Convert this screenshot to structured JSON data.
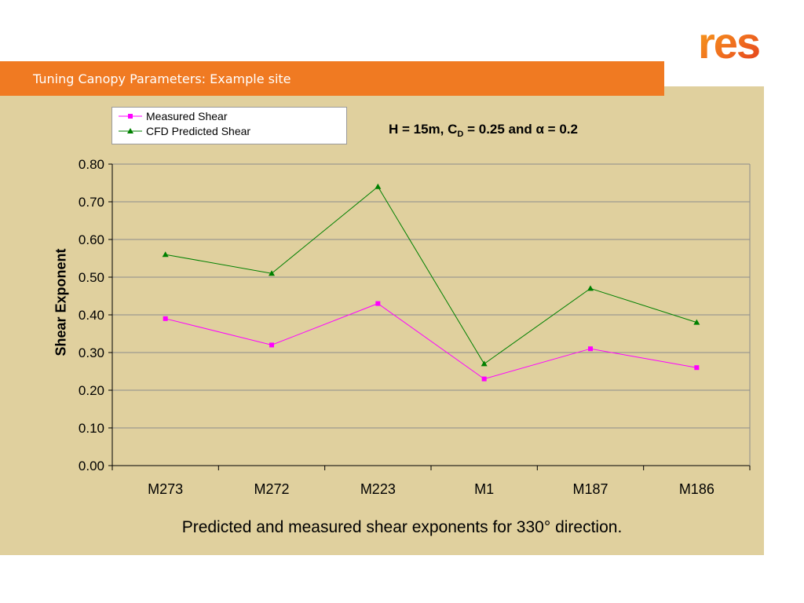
{
  "slide": {
    "header_title": "Tuning Canopy Parameters: Example site",
    "caption": "Predicted and measured shear exponents for 330° direction.",
    "logo_text": "res"
  },
  "colors": {
    "title_bar": "#f07a22",
    "panel": "#e0d09e",
    "measured": "#ff00ff",
    "predicted": "#008000"
  },
  "chart_data": {
    "type": "line",
    "title_parts": {
      "pre": "H = 15m, C",
      "sub": "D",
      "post": " = 0.25 and α = 0.2"
    },
    "xlabel": "",
    "ylabel": "Shear Exponent",
    "categories": [
      "M273",
      "M272",
      "M223",
      "M1",
      "M187",
      "M186"
    ],
    "ylim": [
      0,
      0.8
    ],
    "yticks": [
      "0.00",
      "0.10",
      "0.20",
      "0.30",
      "0.40",
      "0.50",
      "0.60",
      "0.70",
      "0.80"
    ],
    "grid": true,
    "legend_position": "top-left",
    "series": [
      {
        "name": "Measured Shear",
        "marker": "square",
        "values": [
          0.39,
          0.32,
          0.43,
          0.23,
          0.31,
          0.26
        ]
      },
      {
        "name": "CFD Predicted Shear",
        "marker": "triangle",
        "values": [
          0.56,
          0.51,
          0.74,
          0.27,
          0.47,
          0.38
        ]
      }
    ]
  }
}
